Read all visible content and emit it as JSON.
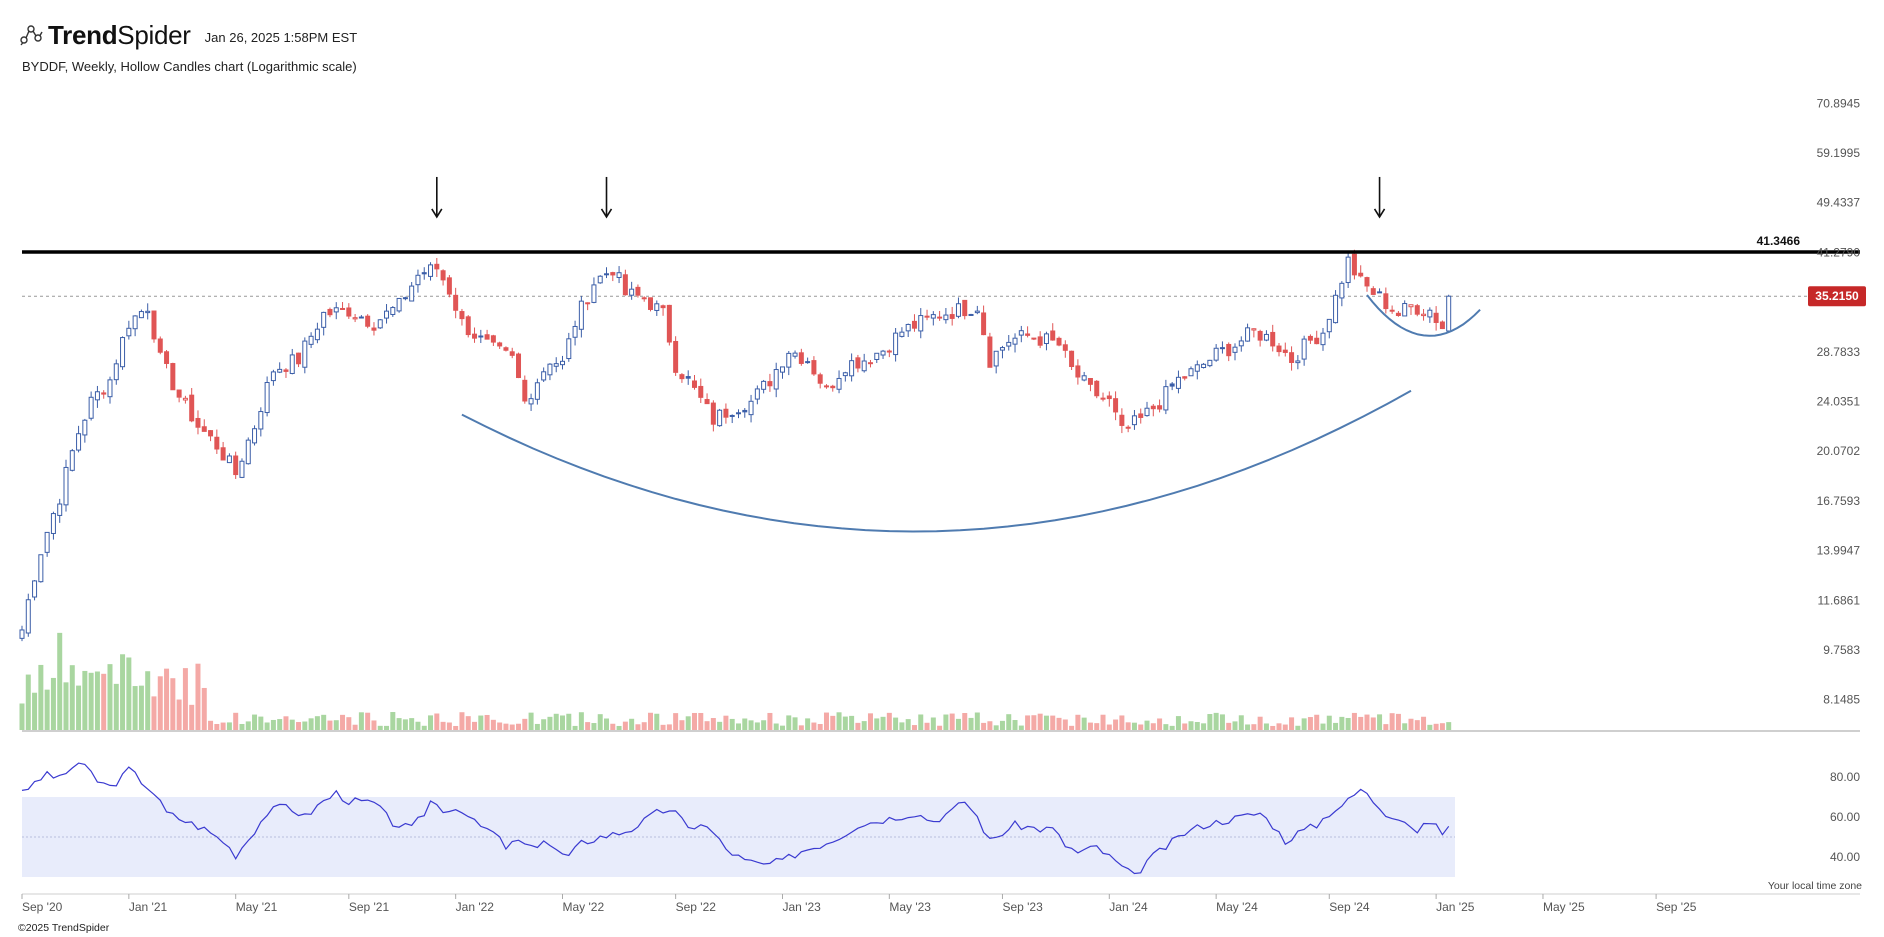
{
  "header": {
    "brand_bold": "Trend",
    "brand_light": "Spider",
    "timestamp": "Jan 26, 2025 1:58PM EST",
    "logo_icon": "trendspider-logo-icon"
  },
  "subtitle": "BYDDF, Weekly, Hollow Candles chart (Logarithmic scale)",
  "footer": {
    "copyright": "©2025 TrendSpider",
    "timezone_note": "Your local time zone"
  },
  "colors": {
    "up": "#3b5ea8",
    "down": "#e05555",
    "vol_up": "#a9d6a0",
    "vol_down": "#f4a9a6",
    "resistance": "#000000",
    "curve": "#4f7bb0",
    "rsi_line": "#3a3ad0",
    "rsi_band": "#e8ecfb",
    "price_badge": "#c62828"
  },
  "chart_data": {
    "type": "candlestick",
    "scale": "log",
    "symbol": "BYDDF",
    "interval": "Weekly",
    "y_ticks": [
      70.8945,
      59.1995,
      49.4337,
      41.279,
      34.4623,
      28.7833,
      24.0351,
      20.0702,
      16.7593,
      13.9947,
      11.6861,
      9.7583,
      8.1485
    ],
    "y_tick_labels": [
      "70.8945",
      "59.1995",
      "49.4337",
      "41.2790",
      "",
      "28.7833",
      "24.0351",
      "20.0702",
      "16.7593",
      "13.9947",
      "11.6861",
      "9.7583",
      "8.1485"
    ],
    "ylim": [
      7.3,
      80
    ],
    "x_ticks": [
      "Sep '20",
      "Jan '21",
      "May '21",
      "Sep '21",
      "Jan '22",
      "May '22",
      "Sep '22",
      "Jan '23",
      "May '23",
      "Sep '23",
      "Jan '24",
      "May '24",
      "Sep '24",
      "Jan '25",
      "May '25",
      "Sep '25"
    ],
    "x_tick_weeks": [
      0,
      17,
      34,
      52,
      69,
      86,
      104,
      121,
      138,
      156,
      173,
      190,
      208,
      225,
      242,
      260
    ],
    "resistance": {
      "value": 41.3466,
      "label": "41.3466"
    },
    "last_price": {
      "value": 35.215,
      "label": "35.2150"
    },
    "anchors": [
      [
        0,
        10.5
      ],
      [
        3,
        14
      ],
      [
        6,
        17
      ],
      [
        9,
        21.5
      ],
      [
        11,
        24
      ],
      [
        14,
        26
      ],
      [
        17,
        32
      ],
      [
        20,
        34
      ],
      [
        22,
        28
      ],
      [
        25,
        24.5
      ],
      [
        28,
        22
      ],
      [
        31,
        20.5
      ],
      [
        34,
        18.5
      ],
      [
        37,
        22
      ],
      [
        40,
        27
      ],
      [
        44,
        28
      ],
      [
        48,
        33
      ],
      [
        52,
        33.5
      ],
      [
        56,
        32
      ],
      [
        60,
        34
      ],
      [
        63,
        38
      ],
      [
        66,
        39
      ],
      [
        68,
        36
      ],
      [
        70,
        32
      ],
      [
        73,
        30
      ],
      [
        75,
        29
      ],
      [
        78,
        28
      ],
      [
        80,
        24
      ],
      [
        82,
        26
      ],
      [
        84,
        28
      ],
      [
        86,
        27.5
      ],
      [
        88,
        32
      ],
      [
        91,
        37
      ],
      [
        94,
        39
      ],
      [
        96,
        35.5
      ],
      [
        99,
        35
      ],
      [
        102,
        33
      ],
      [
        104,
        27.5
      ],
      [
        107,
        25
      ],
      [
        110,
        22.5
      ],
      [
        113,
        23.5
      ],
      [
        116,
        24
      ],
      [
        119,
        26
      ],
      [
        122,
        29
      ],
      [
        125,
        28
      ],
      [
        128,
        25
      ],
      [
        131,
        27.5
      ],
      [
        134,
        28
      ],
      [
        137,
        29
      ],
      [
        140,
        31
      ],
      [
        143,
        32
      ],
      [
        146,
        33
      ],
      [
        149,
        33.5
      ],
      [
        152,
        34
      ],
      [
        154,
        28
      ],
      [
        157,
        30
      ],
      [
        160,
        30.5
      ],
      [
        163,
        30
      ],
      [
        165,
        29.5
      ],
      [
        167,
        27
      ],
      [
        170,
        25
      ],
      [
        173,
        24
      ],
      [
        175,
        21.5
      ],
      [
        178,
        22.5
      ],
      [
        181,
        24
      ],
      [
        184,
        26
      ],
      [
        187,
        27
      ],
      [
        190,
        28.5
      ],
      [
        193,
        29.5
      ],
      [
        196,
        31
      ],
      [
        199,
        30
      ],
      [
        202,
        28
      ],
      [
        205,
        30
      ],
      [
        207,
        31
      ],
      [
        209,
        35
      ],
      [
        211,
        40
      ],
      [
        213,
        37
      ],
      [
        216,
        35
      ],
      [
        219,
        33
      ],
      [
        221,
        34
      ],
      [
        224,
        33.5
      ],
      [
        226,
        31.5
      ],
      [
        227,
        35.215
      ]
    ],
    "rsi": {
      "y_ticks": [
        80,
        60,
        40
      ],
      "y_tick_labels": [
        "80.00",
        "60.00",
        "40.00"
      ],
      "band": [
        30,
        70
      ],
      "anchors": [
        [
          0,
          74
        ],
        [
          2,
          76
        ],
        [
          4,
          82
        ],
        [
          6,
          79
        ],
        [
          8,
          85
        ],
        [
          9,
          87
        ],
        [
          11,
          82
        ],
        [
          12,
          78
        ],
        [
          14,
          75
        ],
        [
          16,
          80
        ],
        [
          17,
          84
        ],
        [
          19,
          78
        ],
        [
          21,
          72
        ],
        [
          23,
          62
        ],
        [
          26,
          58
        ],
        [
          29,
          54
        ],
        [
          32,
          48
        ],
        [
          34,
          41
        ],
        [
          36,
          49
        ],
        [
          39,
          62
        ],
        [
          42,
          66
        ],
        [
          45,
          60
        ],
        [
          48,
          68
        ],
        [
          50,
          72
        ],
        [
          52,
          68
        ],
        [
          56,
          67
        ],
        [
          59,
          57
        ],
        [
          62,
          54
        ],
        [
          64,
          62
        ],
        [
          65,
          68
        ],
        [
          67,
          64
        ],
        [
          70,
          64
        ],
        [
          72,
          57
        ],
        [
          75,
          52
        ],
        [
          77,
          45
        ],
        [
          79,
          48
        ],
        [
          81,
          44
        ],
        [
          83,
          49
        ],
        [
          85,
          43
        ],
        [
          87,
          40
        ],
        [
          89,
          47
        ],
        [
          92,
          50
        ],
        [
          95,
          52
        ],
        [
          97,
          54
        ],
        [
          99,
          58
        ],
        [
          101,
          62
        ],
        [
          103,
          64
        ],
        [
          104,
          62
        ],
        [
          106,
          54
        ],
        [
          108,
          57
        ],
        [
          110,
          52
        ],
        [
          112,
          44
        ],
        [
          115,
          38
        ],
        [
          118,
          36
        ],
        [
          121,
          38
        ],
        [
          124,
          43
        ],
        [
          127,
          46
        ],
        [
          130,
          50
        ],
        [
          133,
          56
        ],
        [
          136,
          58
        ],
        [
          139,
          60
        ],
        [
          142,
          62
        ],
        [
          145,
          58
        ],
        [
          148,
          63
        ],
        [
          150,
          68
        ],
        [
          152,
          60
        ],
        [
          154,
          48
        ],
        [
          156,
          52
        ],
        [
          158,
          56
        ],
        [
          162,
          54
        ],
        [
          164,
          54
        ],
        [
          166,
          46
        ],
        [
          168,
          42
        ],
        [
          171,
          45
        ],
        [
          173,
          40
        ],
        [
          175,
          35
        ],
        [
          177,
          30
        ],
        [
          179,
          38
        ],
        [
          182,
          45
        ],
        [
          185,
          52
        ],
        [
          188,
          56
        ],
        [
          191,
          58
        ],
        [
          194,
          60
        ],
        [
          197,
          62
        ],
        [
          199,
          56
        ],
        [
          201,
          48
        ],
        [
          203,
          52
        ],
        [
          206,
          56
        ],
        [
          208,
          62
        ],
        [
          211,
          68
        ],
        [
          213,
          74
        ],
        [
          215,
          68
        ],
        [
          217,
          62
        ],
        [
          219,
          60
        ],
        [
          221,
          56
        ],
        [
          222,
          52
        ],
        [
          224,
          58
        ],
        [
          226,
          52
        ],
        [
          227,
          56
        ]
      ]
    }
  }
}
